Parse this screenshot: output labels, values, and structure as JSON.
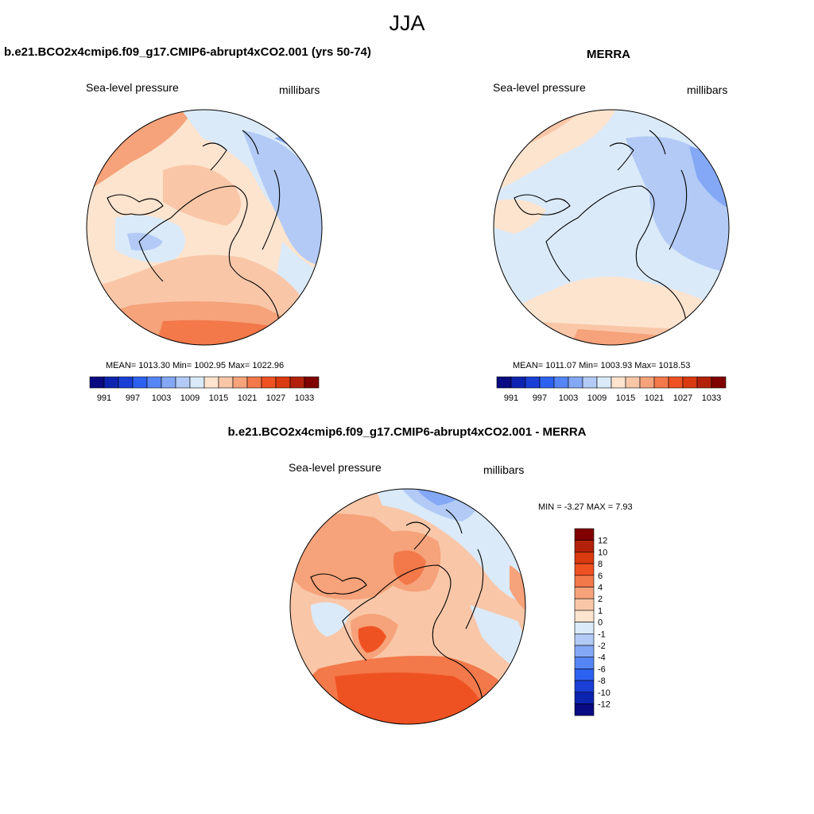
{
  "figure": {
    "season": "JJA"
  },
  "panels": [
    {
      "title": "b.e21.BCO2x4cmip6.f09_g17.CMIP6-abrupt4xCO2.001 (yrs 50-74)",
      "variable": "Sea-level pressure",
      "units": "millibars",
      "stats": "MEAN= 1013.30  Min= 1002.95  Max= 1022.96"
    },
    {
      "title": "MERRA",
      "variable": "Sea-level pressure",
      "units": "millibars",
      "stats": "MEAN= 1011.07  Min= 1003.93  Max= 1018.53"
    },
    {
      "title": "b.e21.BCO2x4cmip6.f09_g17.CMIP6-abrupt4xCO2.001 - MERRA",
      "variable": "Sea-level pressure",
      "units": "millibars",
      "stats": "MIN =  -3.27 MAX =   7.93"
    }
  ],
  "colorbars": {
    "abs": {
      "colors": [
        "#0a0a82",
        "#0d24b0",
        "#1a3fd6",
        "#2d62f0",
        "#5585f5",
        "#84a8f5",
        "#b2caf5",
        "#daeaf9",
        "#fde4cf",
        "#f9c7a8",
        "#f6a27a",
        "#f3784a",
        "#ef5222",
        "#d93a0f",
        "#b3210a",
        "#800000"
      ],
      "ticks": [
        "991",
        "997",
        "1003",
        "1009",
        "1015",
        "1021",
        "1027",
        "1033"
      ]
    },
    "diff": {
      "colors": [
        "#800000",
        "#b3210a",
        "#d93a0f",
        "#ef5222",
        "#f3784a",
        "#f6a27a",
        "#f9c7a8",
        "#fde4cf",
        "#daeaf9",
        "#b2caf5",
        "#84a8f5",
        "#5585f5",
        "#2d62f0",
        "#1a3fd6",
        "#0d24b0",
        "#0a0a82"
      ],
      "ticks": [
        "12",
        "10",
        "8",
        "6",
        "4",
        "2",
        "1",
        "0",
        "-1",
        "-2",
        "-4",
        "-6",
        "-8",
        "-10",
        "-12"
      ]
    }
  }
}
